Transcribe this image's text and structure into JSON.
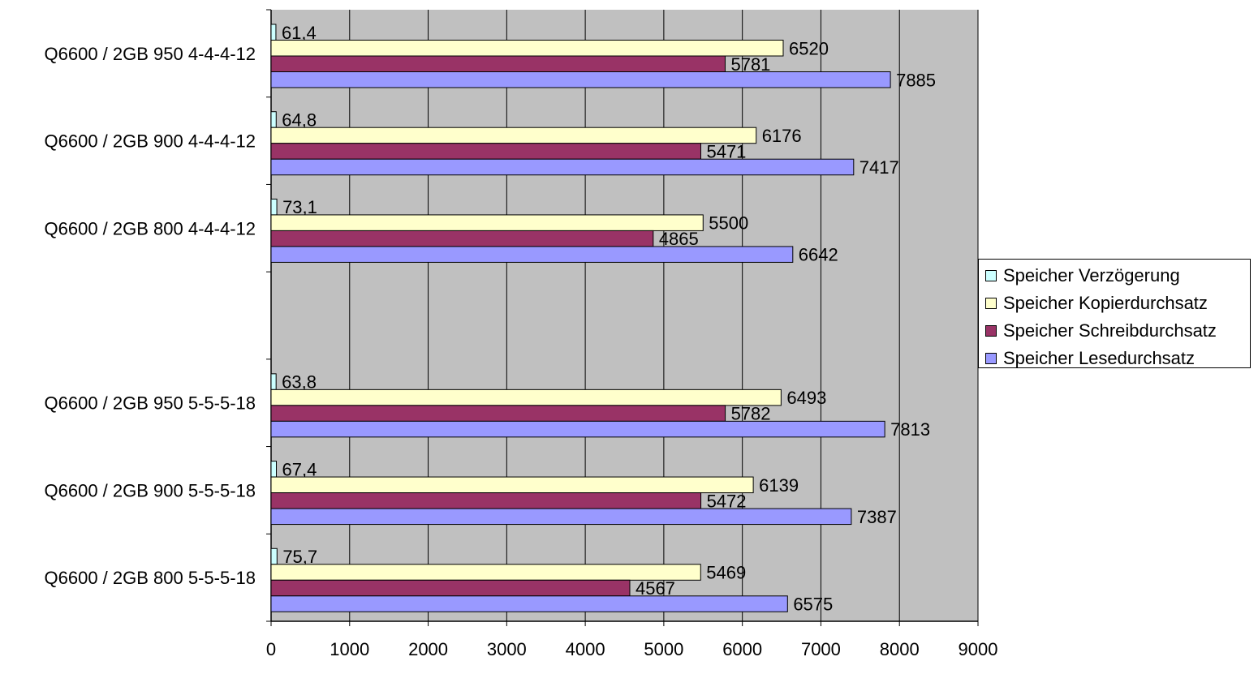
{
  "chart_data": {
    "type": "bar",
    "orientation": "horizontal",
    "categories": [
      "Q6600 / 2GB 950 4-4-4-12",
      "Q6600 / 2GB 900 4-4-4-12",
      "Q6600 / 2GB 800 4-4-4-12",
      "",
      "Q6600 / 2GB 950 5-5-5-18",
      "Q6600 / 2GB 900 5-5-5-18",
      "Q6600 / 2GB 800 5-5-5-18"
    ],
    "series": [
      {
        "name": "Speicher Verzögerung",
        "color": "#ccffff",
        "values": [
          61.4,
          64.8,
          73.1,
          null,
          63.8,
          67.4,
          75.7
        ],
        "labels": [
          "61,4",
          "64,8",
          "73,1",
          "",
          "63,8",
          "67,4",
          "75,7"
        ]
      },
      {
        "name": "Speicher Kopierdurchsatz",
        "color": "#ffffcc",
        "values": [
          6520,
          6176,
          5500,
          null,
          6493,
          6139,
          5469
        ],
        "labels": [
          "6520",
          "6176",
          "5500",
          "",
          "6493",
          "6139",
          "5469"
        ]
      },
      {
        "name": "Speicher Schreibdurchsatz",
        "color": "#993366",
        "values": [
          5781,
          5471,
          4865,
          null,
          5782,
          5472,
          4567
        ],
        "labels": [
          "5781",
          "5471",
          "4865",
          "",
          "5782",
          "5472",
          "4567"
        ]
      },
      {
        "name": "Speicher Lesedurchsatz",
        "color": "#9999ff",
        "values": [
          7885,
          7417,
          6642,
          null,
          7813,
          7387,
          6575
        ],
        "labels": [
          "7885",
          "7417",
          "6642",
          "",
          "7813",
          "7387",
          "6575"
        ]
      }
    ],
    "xlim": [
      0,
      9000
    ],
    "xticks": [
      0,
      1000,
      2000,
      3000,
      4000,
      5000,
      6000,
      7000,
      8000,
      9000
    ],
    "plot_background": "#c0c0c0",
    "grid": "vertical",
    "legend_position": "right",
    "title": "",
    "xlabel": "",
    "ylabel": ""
  }
}
